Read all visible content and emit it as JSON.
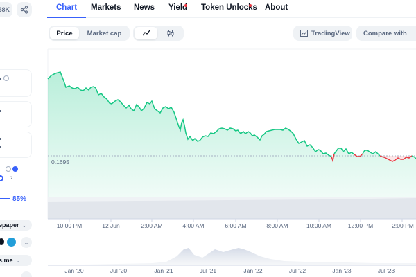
{
  "left_panel": {
    "top_button_text": "58K",
    "progress_pct": "85%",
    "links": [
      "epaper",
      "s.me"
    ]
  },
  "tabs": [
    {
      "label": "Chart",
      "active": true
    },
    {
      "label": "Markets"
    },
    {
      "label": "News"
    },
    {
      "label": "Yield",
      "badge": true
    },
    {
      "label": "Token Unlocks",
      "badge": true
    },
    {
      "label": "About"
    }
  ],
  "toolbar": {
    "price_label": "Price",
    "market_cap_label": "Market cap",
    "tradingview_label": "TradingView",
    "compare_label": "Compare with"
  },
  "chart": {
    "reference_price": "0.1695",
    "x_ticks": [
      "10:00 PM",
      "12 Jun",
      "2:00 AM",
      "4:00 AM",
      "6:00 AM",
      "8:00 AM",
      "10:00 AM",
      "12:00 PM",
      "2:00 PM"
    ],
    "navigator_ticks": [
      "Jan '20",
      "Jul '20",
      "Jan '21",
      "Jul '21",
      "Jan '22",
      "Jul '22",
      "Jan '23",
      "Jul '23"
    ]
  },
  "colors": {
    "accent": "#3861fb",
    "up": "#16c784",
    "down": "#ea3943",
    "text_muted": "#58667e"
  },
  "chart_data": {
    "type": "area",
    "x": [
      "10:00 PM",
      "12 Jun",
      "2:00 AM",
      "4:00 AM",
      "6:00 AM",
      "8:00 AM",
      "10:00 AM",
      "12:00 PM",
      "2:00 PM"
    ],
    "series": [
      {
        "values": [
          0.1805,
          0.1775,
          0.1772,
          0.1745,
          0.1723,
          0.1728,
          0.1702,
          0.1697,
          0.1689
        ]
      }
    ],
    "reference_line": 0.1695,
    "above_color": "#16c784",
    "below_color": "#ea3943"
  }
}
